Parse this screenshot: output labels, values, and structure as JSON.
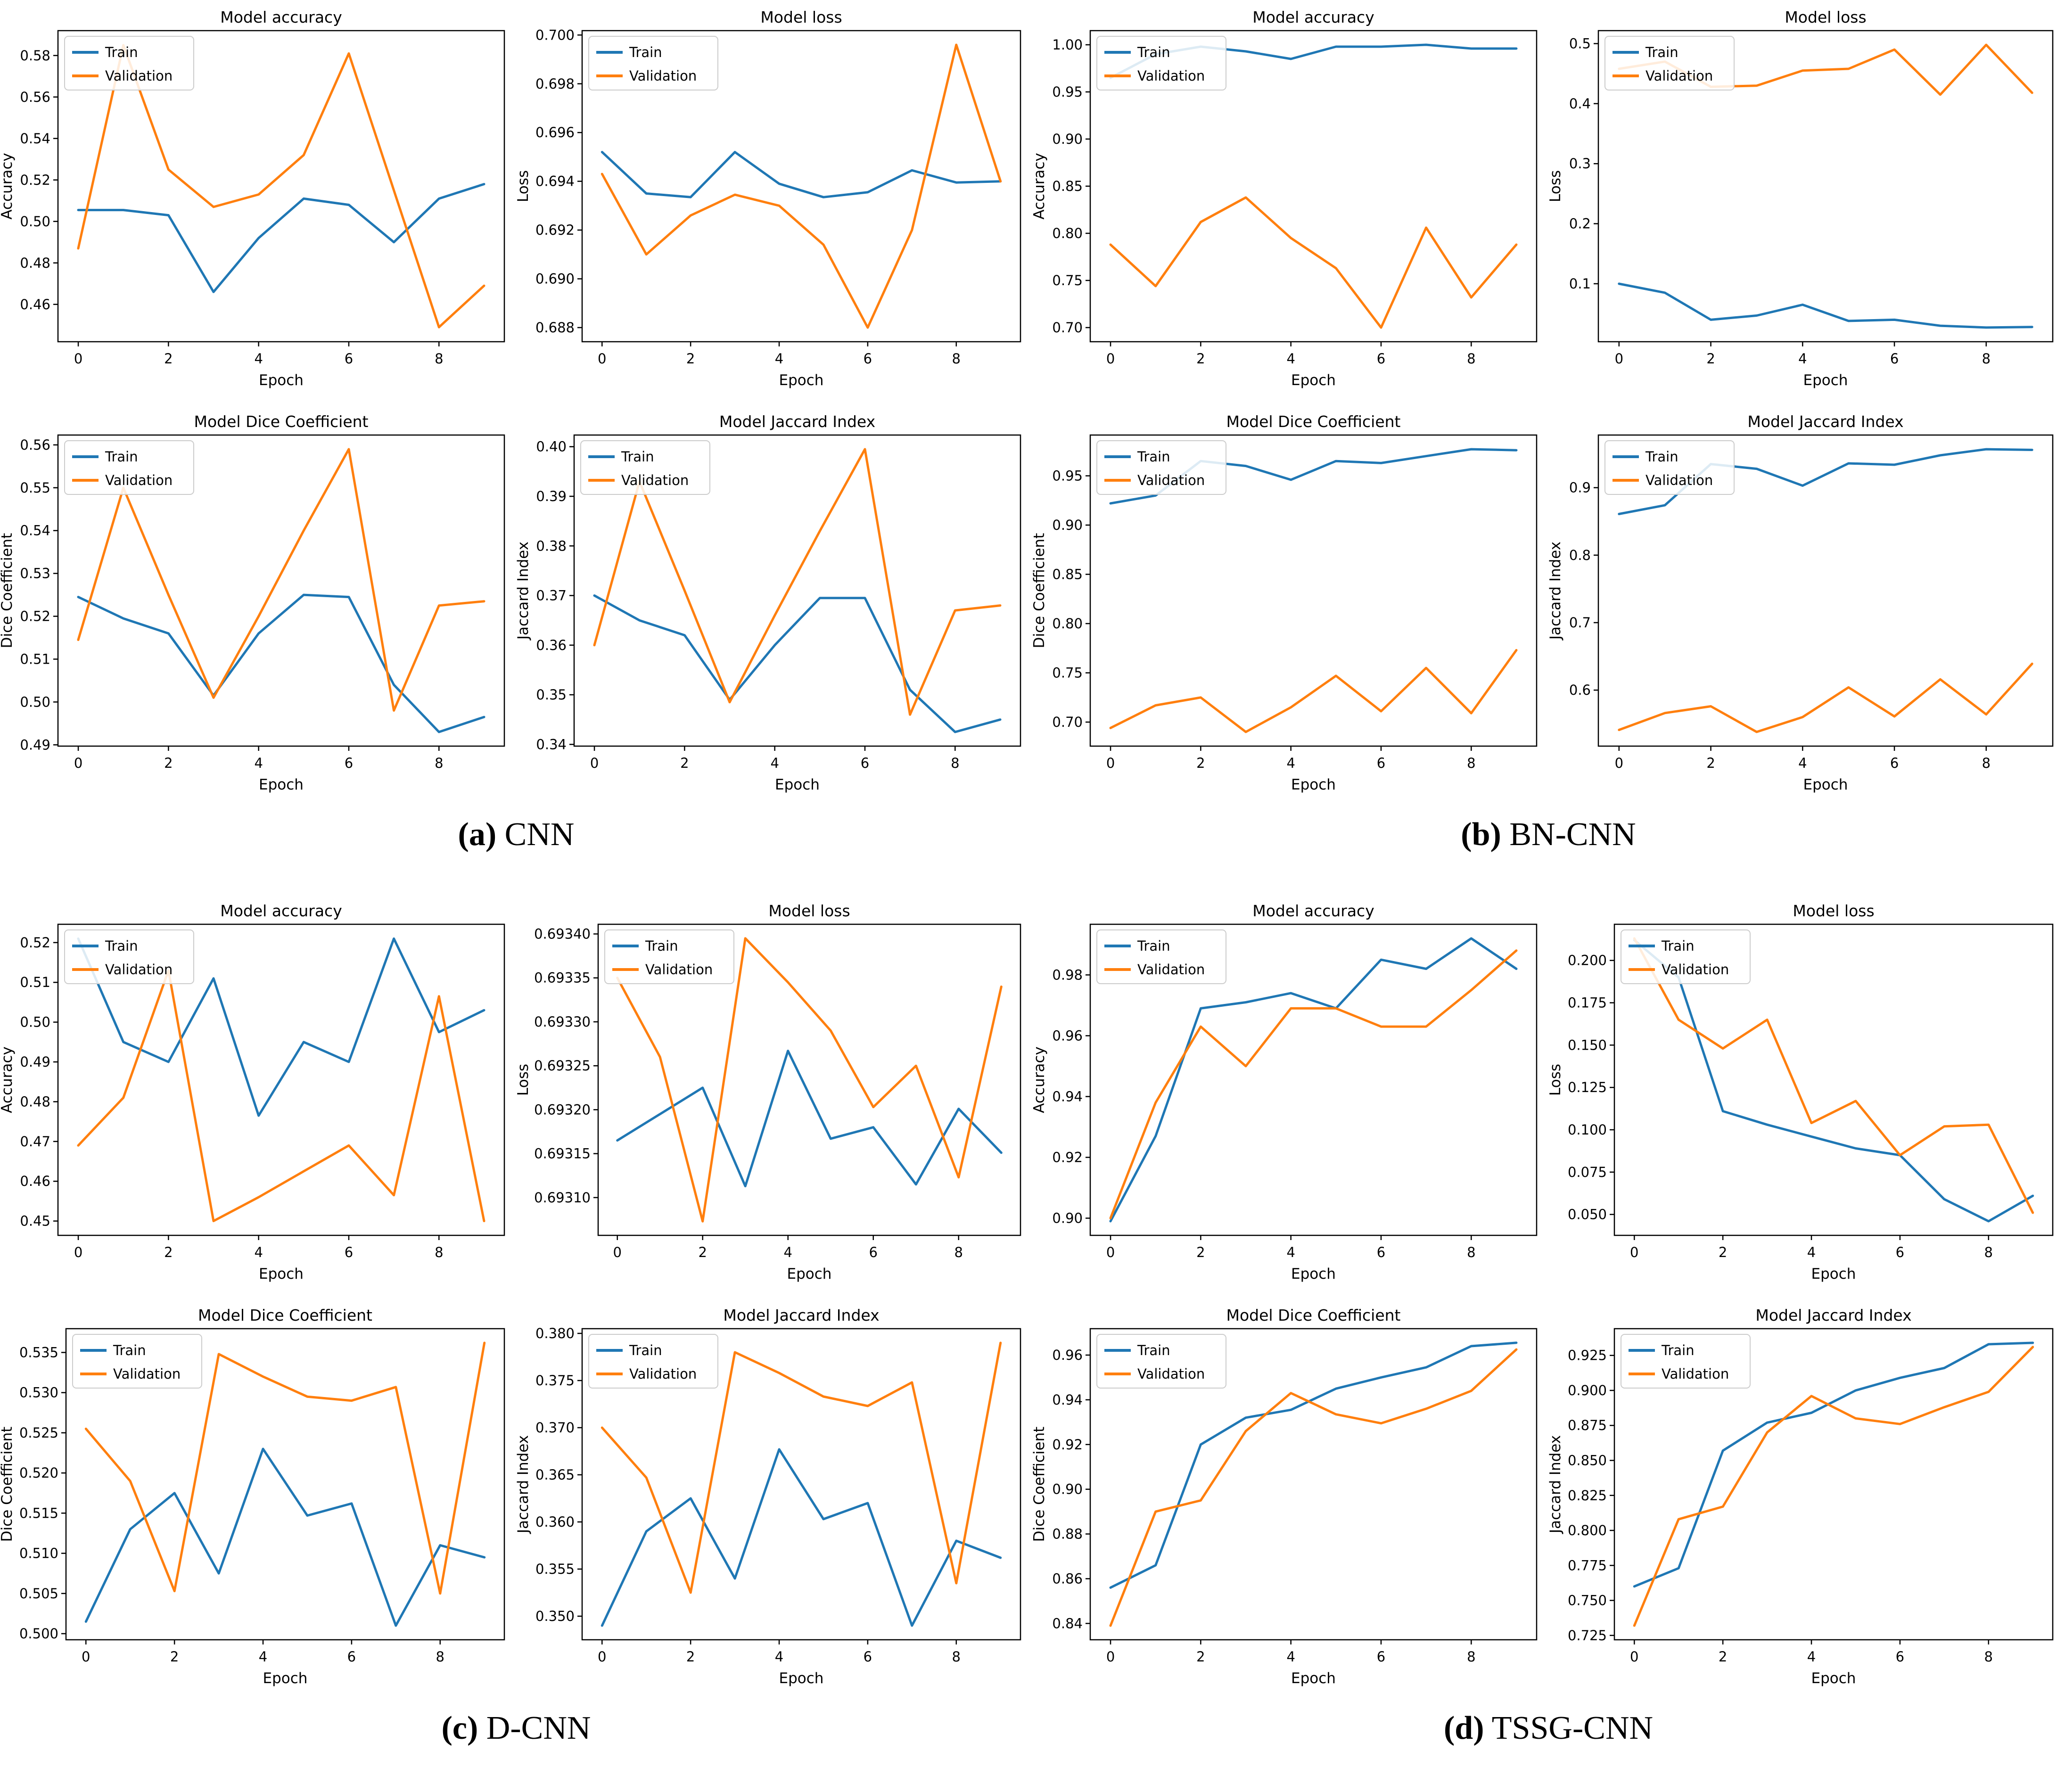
{
  "figure": {
    "legend": {
      "train": "Train",
      "validation": "Validation"
    },
    "colors": {
      "train": "#1f77b4",
      "validation": "#ff7f0e"
    },
    "epochs": [
      0,
      1,
      2,
      3,
      4,
      5,
      6,
      7,
      8,
      9
    ],
    "xticks": [
      0,
      2,
      4,
      6,
      8
    ],
    "xlim": [
      -0.45,
      9.45
    ]
  },
  "chart_data": [
    {
      "group": "a",
      "caption_letter": "(a)",
      "caption_label": "CNN",
      "charts": [
        {
          "type": "line",
          "title": "Model accuracy",
          "xlabel": "Epoch",
          "ylabel": "Accuracy",
          "ylim": [
            0.442,
            0.592
          ],
          "yticks": [
            0.46,
            0.48,
            0.5,
            0.52,
            0.54,
            0.56,
            0.58
          ],
          "ydecimals": 2,
          "series": [
            {
              "name": "Train",
              "values": [
                0.5055,
                0.5055,
                0.503,
                0.466,
                0.492,
                0.511,
                0.508,
                0.49,
                0.511,
                0.518
              ]
            },
            {
              "name": "Validation",
              "values": [
                0.487,
                0.585,
                0.525,
                0.507,
                0.513,
                0.532,
                0.581,
                0.515,
                0.449,
                0.469
              ]
            }
          ]
        },
        {
          "type": "line",
          "title": "Model loss",
          "xlabel": "Epoch",
          "ylabel": "Loss",
          "ylim": [
            0.68742,
            0.70018
          ],
          "yticks": [
            0.688,
            0.69,
            0.692,
            0.694,
            0.696,
            0.698,
            0.7
          ],
          "ydecimals": 3,
          "series": [
            {
              "name": "Train",
              "values": [
                0.6952,
                0.6935,
                0.69335,
                0.6952,
                0.6939,
                0.69335,
                0.69355,
                0.69445,
                0.69395,
                0.694
              ]
            },
            {
              "name": "Validation",
              "values": [
                0.6943,
                0.691,
                0.6926,
                0.69345,
                0.693,
                0.6914,
                0.688,
                0.692,
                0.6996,
                0.694
              ]
            }
          ]
        },
        {
          "type": "line",
          "title": "Model Dice Coefficient",
          "xlabel": "Epoch",
          "ylabel": "Dice Coefficient",
          "ylim": [
            0.4897,
            0.5623
          ],
          "yticks": [
            0.49,
            0.5,
            0.51,
            0.52,
            0.53,
            0.54,
            0.55,
            0.56
          ],
          "ydecimals": 2,
          "series": [
            {
              "name": "Train",
              "values": [
                0.5245,
                0.5195,
                0.516,
                0.5015,
                0.516,
                0.525,
                0.5245,
                0.504,
                0.493,
                0.4965
              ]
            },
            {
              "name": "Validation",
              "values": [
                0.5145,
                0.55,
                0.525,
                0.501,
                0.52,
                0.54,
                0.559,
                0.498,
                0.5225,
                0.5235
              ]
            }
          ]
        },
        {
          "type": "line",
          "title": "Model Jaccard Index",
          "xlabel": "Epoch",
          "ylabel": "Jaccard Index",
          "ylim": [
            0.33965,
            0.40235
          ],
          "yticks": [
            0.34,
            0.35,
            0.36,
            0.37,
            0.38,
            0.39,
            0.4
          ],
          "ydecimals": 2,
          "series": [
            {
              "name": "Train",
              "values": [
                0.37,
                0.365,
                0.362,
                0.349,
                0.36,
                0.3695,
                0.3695,
                0.351,
                0.3425,
                0.345
              ]
            },
            {
              "name": "Validation",
              "values": [
                0.36,
                0.393,
                0.371,
                0.3485,
                0.366,
                0.383,
                0.3995,
                0.346,
                0.367,
                0.368
              ]
            }
          ]
        }
      ]
    },
    {
      "group": "b",
      "caption_letter": "(b)",
      "caption_label": "BN-CNN",
      "charts": [
        {
          "type": "line",
          "title": "Model accuracy",
          "xlabel": "Epoch",
          "ylabel": "Accuracy",
          "ylim": [
            0.685,
            1.015
          ],
          "yticks": [
            0.7,
            0.75,
            0.8,
            0.85,
            0.9,
            0.95,
            1.0
          ],
          "ydecimals": 2,
          "series": [
            {
              "name": "Train",
              "values": [
                0.965,
                0.99,
                0.998,
                0.993,
                0.985,
                0.998,
                0.998,
                1.0,
                0.996,
                0.996
              ]
            },
            {
              "name": "Validation",
              "values": [
                0.788,
                0.744,
                0.812,
                0.838,
                0.795,
                0.763,
                0.7,
                0.806,
                0.732,
                0.788
              ]
            }
          ]
        },
        {
          "type": "line",
          "title": "Model loss",
          "xlabel": "Epoch",
          "ylabel": "Loss",
          "ylim": [
            0.0034,
            0.5216
          ],
          "yticks": [
            0.1,
            0.2,
            0.3,
            0.4,
            0.5
          ],
          "ydecimals": 1,
          "series": [
            {
              "name": "Train",
              "values": [
                0.1,
                0.085,
                0.04,
                0.047,
                0.065,
                0.038,
                0.04,
                0.03,
                0.027,
                0.028
              ]
            },
            {
              "name": "Validation",
              "values": [
                0.458,
                0.47,
                0.428,
                0.43,
                0.455,
                0.458,
                0.49,
                0.415,
                0.498,
                0.418
              ]
            }
          ]
        },
        {
          "type": "line",
          "title": "Model Dice Coefficient",
          "xlabel": "Epoch",
          "ylabel": "Dice Coefficient",
          "ylim": [
            0.6756,
            0.9914
          ],
          "yticks": [
            0.7,
            0.75,
            0.8,
            0.85,
            0.9,
            0.95
          ],
          "ydecimals": 2,
          "series": [
            {
              "name": "Train",
              "values": [
                0.922,
                0.93,
                0.965,
                0.96,
                0.946,
                0.965,
                0.963,
                0.97,
                0.977,
                0.976
              ]
            },
            {
              "name": "Validation",
              "values": [
                0.694,
                0.717,
                0.725,
                0.69,
                0.715,
                0.747,
                0.711,
                0.755,
                0.709,
                0.773
              ]
            }
          ]
        },
        {
          "type": "line",
          "title": "Model Jaccard Index",
          "xlabel": "Epoch",
          "ylabel": "Jaccard Index",
          "ylim": [
            0.517,
            0.978
          ],
          "yticks": [
            0.6,
            0.7,
            0.8,
            0.9
          ],
          "ydecimals": 1,
          "series": [
            {
              "name": "Train",
              "values": [
                0.861,
                0.874,
                0.935,
                0.928,
                0.903,
                0.936,
                0.934,
                0.948,
                0.957,
                0.956
              ]
            },
            {
              "name": "Validation",
              "values": [
                0.541,
                0.566,
                0.576,
                0.538,
                0.56,
                0.604,
                0.561,
                0.616,
                0.564,
                0.639
              ]
            }
          ]
        }
      ]
    },
    {
      "group": "c",
      "caption_letter": "(c)",
      "caption_label": "D-CNN",
      "charts": [
        {
          "type": "line",
          "title": "Model accuracy",
          "xlabel": "Epoch",
          "ylabel": "Accuracy",
          "ylim": [
            0.4464,
            0.5246
          ],
          "yticks": [
            0.45,
            0.46,
            0.47,
            0.48,
            0.49,
            0.5,
            0.51,
            0.52
          ],
          "ydecimals": 2,
          "series": [
            {
              "name": "Train",
              "values": [
                0.521,
                0.495,
                0.49,
                0.511,
                0.4765,
                0.495,
                0.49,
                0.521,
                0.4975,
                0.503
              ]
            },
            {
              "name": "Validation",
              "values": [
                0.469,
                0.481,
                0.513,
                0.45,
                0.456,
                0.4625,
                0.469,
                0.4565,
                0.5065,
                0.45
              ]
            }
          ]
        },
        {
          "type": "line",
          "title": "Model loss",
          "xlabel": "Epoch",
          "ylabel": "Loss",
          "ylim": [
            0.693057,
            0.693411
          ],
          "yticks": [
            0.6931,
            0.69315,
            0.6932,
            0.69325,
            0.6933,
            0.69335,
            0.6934
          ],
          "ydecimals": 5,
          "series": [
            {
              "name": "Train",
              "values": [
                0.693165,
                0.693195,
                0.693225,
                0.693113,
                0.693267,
                0.693167,
                0.69318,
                0.693115,
                0.693201,
                0.693151
              ]
            },
            {
              "name": "Validation",
              "values": [
                0.69335,
                0.69326,
                0.693073,
                0.693395,
                0.693345,
                0.69329,
                0.693203,
                0.69325,
                0.693123,
                0.69334
              ]
            }
          ]
        },
        {
          "type": "line",
          "title": "Model Dice Coefficient",
          "xlabel": "Epoch",
          "ylabel": "Dice Coefficient",
          "ylim": [
            0.49924,
            0.53796
          ],
          "yticks": [
            0.5,
            0.505,
            0.51,
            0.515,
            0.52,
            0.525,
            0.53,
            0.535
          ],
          "ydecimals": 3,
          "series": [
            {
              "name": "Train",
              "values": [
                0.5015,
                0.513,
                0.5175,
                0.5075,
                0.523,
                0.5147,
                0.5162,
                0.501,
                0.511,
                0.5095
              ]
            },
            {
              "name": "Validation",
              "values": [
                0.5255,
                0.519,
                0.5053,
                0.5348,
                0.532,
                0.5295,
                0.529,
                0.5307,
                0.505,
                0.5362
              ]
            }
          ]
        },
        {
          "type": "line",
          "title": "Model Jaccard Index",
          "xlabel": "Epoch",
          "ylabel": "Jaccard Index",
          "ylim": [
            0.3475,
            0.3805
          ],
          "yticks": [
            0.35,
            0.355,
            0.36,
            0.365,
            0.37,
            0.375,
            0.38
          ],
          "ydecimals": 3,
          "series": [
            {
              "name": "Train",
              "values": [
                0.349,
                0.359,
                0.3625,
                0.354,
                0.3677,
                0.3603,
                0.362,
                0.349,
                0.358,
                0.3562
              ]
            },
            {
              "name": "Validation",
              "values": [
                0.37,
                0.3647,
                0.3525,
                0.378,
                0.3758,
                0.3733,
                0.3723,
                0.3748,
                0.3535,
                0.379
              ]
            }
          ]
        }
      ]
    },
    {
      "group": "d",
      "caption_letter": "(d)",
      "caption_label": "TSSG-CNN",
      "charts": [
        {
          "type": "line",
          "title": "Model accuracy",
          "xlabel": "Epoch",
          "ylabel": "Accuracy",
          "ylim": [
            0.89435,
            0.99665
          ],
          "yticks": [
            0.9,
            0.92,
            0.94,
            0.96,
            0.98
          ],
          "ydecimals": 2,
          "series": [
            {
              "name": "Train",
              "values": [
                0.899,
                0.927,
                0.969,
                0.971,
                0.974,
                0.969,
                0.985,
                0.982,
                0.992,
                0.982
              ]
            },
            {
              "name": "Validation",
              "values": [
                0.9,
                0.938,
                0.963,
                0.95,
                0.969,
                0.969,
                0.963,
                0.963,
                0.975,
                0.988
              ]
            }
          ]
        },
        {
          "type": "line",
          "title": "Model loss",
          "xlabel": "Epoch",
          "ylabel": "Loss",
          "ylim": [
            0.03765,
            0.22135
          ],
          "yticks": [
            0.05,
            0.075,
            0.1,
            0.125,
            0.15,
            0.175,
            0.2
          ],
          "ydecimals": 3,
          "series": [
            {
              "name": "Train",
              "values": [
                0.212,
                0.19,
                0.111,
                0.103,
                0.096,
                0.089,
                0.085,
                0.059,
                0.046,
                0.061
              ]
            },
            {
              "name": "Validation",
              "values": [
                0.213,
                0.165,
                0.148,
                0.165,
                0.104,
                0.117,
                0.085,
                0.102,
                0.103,
                0.051
              ]
            }
          ]
        },
        {
          "type": "line",
          "title": "Model Dice Coefficient",
          "xlabel": "Epoch",
          "ylabel": "Dice Coefficient",
          "ylim": [
            0.8327,
            0.9718
          ],
          "yticks": [
            0.84,
            0.86,
            0.88,
            0.9,
            0.92,
            0.94,
            0.96
          ],
          "ydecimals": 2,
          "series": [
            {
              "name": "Train",
              "values": [
                0.856,
                0.866,
                0.92,
                0.932,
                0.9355,
                0.945,
                0.95,
                0.9545,
                0.964,
                0.9655
              ]
            },
            {
              "name": "Validation",
              "values": [
                0.839,
                0.89,
                0.895,
                0.926,
                0.943,
                0.9335,
                0.9295,
                0.936,
                0.944,
                0.9625
              ]
            }
          ]
        },
        {
          "type": "line",
          "title": "Model Jaccard Index",
          "xlabel": "Epoch",
          "ylabel": "Jaccard Index",
          "ylim": [
            0.7219,
            0.9441
          ],
          "yticks": [
            0.725,
            0.75,
            0.775,
            0.8,
            0.825,
            0.85,
            0.875,
            0.9,
            0.925
          ],
          "ydecimals": 3,
          "series": [
            {
              "name": "Train",
              "values": [
                0.76,
                0.773,
                0.857,
                0.877,
                0.884,
                0.9,
                0.909,
                0.916,
                0.933,
                0.934
              ]
            },
            {
              "name": "Validation",
              "values": [
                0.732,
                0.808,
                0.817,
                0.87,
                0.896,
                0.88,
                0.876,
                0.888,
                0.899,
                0.931
              ]
            }
          ]
        }
      ]
    }
  ]
}
